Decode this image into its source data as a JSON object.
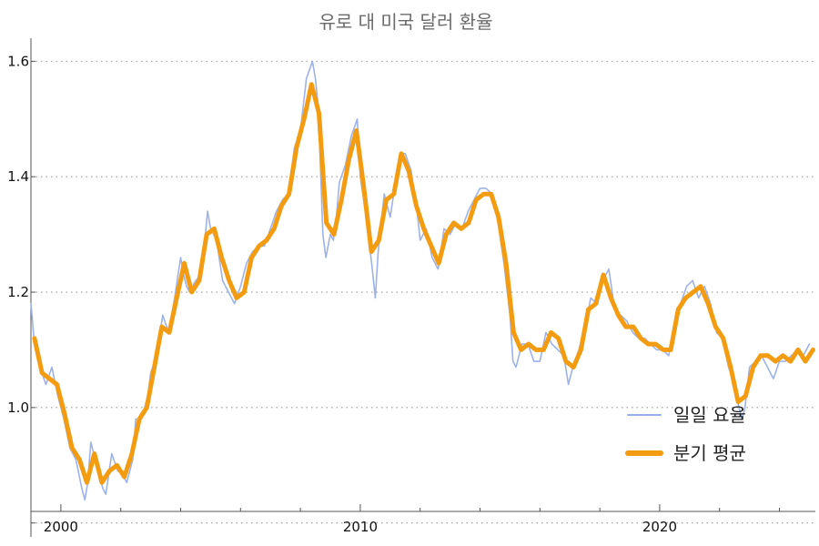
{
  "chart_data": {
    "type": "line",
    "title": "유로 대 미국 달러 환율",
    "xlabel": "",
    "ylabel": "",
    "xlim": [
      1999.0,
      2025.2
    ],
    "ylim": [
      0.82,
      1.64
    ],
    "x_ticks": [
      2000,
      2010,
      2020
    ],
    "x_minor_ticks": [
      2002,
      2004,
      2006,
      2008,
      2012,
      2014,
      2016,
      2018,
      2022,
      2024
    ],
    "y_ticks": [
      0.8,
      1.0,
      1.2,
      1.4,
      1.6
    ],
    "y_tick_labels": [
      "",
      "1.0",
      "1.2",
      "1.4",
      "1.6"
    ],
    "grid": "horizontal-dotted",
    "legend_position": "bottom-right",
    "series": [
      {
        "name": "일일 요율",
        "color": "#98aee8",
        "style": "thin",
        "x": [
          1999.0,
          1999.1,
          1999.3,
          1999.5,
          1999.7,
          1999.9,
          2000.1,
          2000.3,
          2000.5,
          2000.7,
          2000.8,
          2000.9,
          2001.0,
          2001.2,
          2001.4,
          2001.5,
          2001.7,
          2001.9,
          2002.0,
          2002.2,
          2002.4,
          2002.5,
          2002.7,
          2002.9,
          2003.0,
          2003.2,
          2003.4,
          2003.6,
          2003.8,
          2004.0,
          2004.1,
          2004.2,
          2004.3,
          2004.5,
          2004.7,
          2004.9,
          2005.0,
          2005.2,
          2005.4,
          2005.6,
          2005.8,
          2006.0,
          2006.2,
          2006.4,
          2006.6,
          2006.8,
          2007.0,
          2007.2,
          2007.4,
          2007.6,
          2007.8,
          2008.0,
          2008.2,
          2008.4,
          2008.5,
          2008.6,
          2008.75,
          2008.85,
          2009.0,
          2009.1,
          2009.2,
          2009.3,
          2009.5,
          2009.7,
          2009.9,
          2010.0,
          2010.2,
          2010.4,
          2010.5,
          2010.6,
          2010.8,
          2011.0,
          2011.2,
          2011.35,
          2011.5,
          2011.7,
          2011.9,
          2012.0,
          2012.2,
          2012.4,
          2012.6,
          2012.8,
          2013.0,
          2013.2,
          2013.4,
          2013.6,
          2013.8,
          2014.0,
          2014.2,
          2014.4,
          2014.6,
          2014.8,
          2015.0,
          2015.1,
          2015.2,
          2015.4,
          2015.6,
          2015.8,
          2016.0,
          2016.2,
          2016.4,
          2016.6,
          2016.8,
          2016.95,
          2017.1,
          2017.3,
          2017.5,
          2017.7,
          2017.9,
          2018.1,
          2018.3,
          2018.5,
          2018.7,
          2018.9,
          2019.1,
          2019.3,
          2019.5,
          2019.7,
          2019.9,
          2020.1,
          2020.3,
          2020.5,
          2020.7,
          2020.9,
          2021.1,
          2021.3,
          2021.5,
          2021.7,
          2021.9,
          2022.1,
          2022.3,
          2022.5,
          2022.6,
          2022.75,
          2022.85,
          2023.0,
          2023.2,
          2023.4,
          2023.6,
          2023.8,
          2024.0,
          2024.2,
          2024.4,
          2024.6,
          2024.8,
          2025.0
        ],
        "values": [
          1.18,
          1.12,
          1.07,
          1.04,
          1.07,
          1.02,
          0.98,
          0.93,
          0.91,
          0.86,
          0.84,
          0.87,
          0.94,
          0.9,
          0.86,
          0.85,
          0.92,
          0.89,
          0.89,
          0.87,
          0.91,
          0.98,
          0.98,
          1.02,
          1.06,
          1.09,
          1.16,
          1.13,
          1.19,
          1.26,
          1.23,
          1.21,
          1.2,
          1.22,
          1.23,
          1.34,
          1.31,
          1.29,
          1.22,
          1.2,
          1.18,
          1.21,
          1.25,
          1.27,
          1.28,
          1.28,
          1.31,
          1.34,
          1.36,
          1.37,
          1.45,
          1.48,
          1.57,
          1.6,
          1.57,
          1.52,
          1.3,
          1.26,
          1.3,
          1.29,
          1.33,
          1.39,
          1.42,
          1.47,
          1.5,
          1.4,
          1.33,
          1.24,
          1.19,
          1.27,
          1.37,
          1.33,
          1.4,
          1.44,
          1.44,
          1.41,
          1.34,
          1.29,
          1.31,
          1.26,
          1.24,
          1.31,
          1.3,
          1.32,
          1.31,
          1.34,
          1.36,
          1.38,
          1.38,
          1.37,
          1.32,
          1.25,
          1.16,
          1.08,
          1.07,
          1.11,
          1.11,
          1.08,
          1.08,
          1.13,
          1.11,
          1.1,
          1.09,
          1.04,
          1.07,
          1.1,
          1.14,
          1.19,
          1.18,
          1.22,
          1.24,
          1.17,
          1.16,
          1.15,
          1.13,
          1.12,
          1.12,
          1.11,
          1.1,
          1.1,
          1.09,
          1.14,
          1.18,
          1.21,
          1.22,
          1.19,
          1.21,
          1.18,
          1.13,
          1.12,
          1.07,
          1.04,
          1.01,
          0.98,
          1.0,
          1.07,
          1.08,
          1.09,
          1.07,
          1.05,
          1.08,
          1.08,
          1.09,
          1.1,
          1.09,
          1.11
        ]
      },
      {
        "name": "분기 평균",
        "color": "#f39c12",
        "style": "thick",
        "x": [
          1999.12,
          1999.37,
          1999.62,
          1999.87,
          2000.12,
          2000.37,
          2000.62,
          2000.87,
          2001.12,
          2001.37,
          2001.62,
          2001.87,
          2002.12,
          2002.37,
          2002.62,
          2002.87,
          2003.12,
          2003.37,
          2003.62,
          2003.87,
          2004.12,
          2004.37,
          2004.62,
          2004.87,
          2005.12,
          2005.37,
          2005.62,
          2005.87,
          2006.12,
          2006.37,
          2006.62,
          2006.87,
          2007.12,
          2007.37,
          2007.62,
          2007.87,
          2008.12,
          2008.37,
          2008.62,
          2008.87,
          2009.12,
          2009.37,
          2009.62,
          2009.87,
          2010.12,
          2010.37,
          2010.62,
          2010.87,
          2011.12,
          2011.37,
          2011.62,
          2011.87,
          2012.12,
          2012.37,
          2012.62,
          2012.87,
          2013.12,
          2013.37,
          2013.62,
          2013.87,
          2014.12,
          2014.37,
          2014.62,
          2014.87,
          2015.12,
          2015.37,
          2015.62,
          2015.87,
          2016.12,
          2016.37,
          2016.62,
          2016.87,
          2017.12,
          2017.37,
          2017.62,
          2017.87,
          2018.12,
          2018.37,
          2018.62,
          2018.87,
          2019.12,
          2019.37,
          2019.62,
          2019.87,
          2020.12,
          2020.37,
          2020.62,
          2020.87,
          2021.12,
          2021.37,
          2021.62,
          2021.87,
          2022.12,
          2022.37,
          2022.62,
          2022.87,
          2023.12,
          2023.37,
          2023.62,
          2023.87,
          2024.12,
          2024.37,
          2024.62,
          2024.87,
          2025.12
        ],
        "values": [
          1.12,
          1.06,
          1.05,
          1.04,
          0.99,
          0.93,
          0.91,
          0.87,
          0.92,
          0.87,
          0.89,
          0.9,
          0.88,
          0.92,
          0.98,
          1.0,
          1.07,
          1.14,
          1.13,
          1.19,
          1.25,
          1.2,
          1.22,
          1.3,
          1.31,
          1.26,
          1.22,
          1.19,
          1.2,
          1.26,
          1.28,
          1.29,
          1.31,
          1.35,
          1.37,
          1.45,
          1.5,
          1.56,
          1.51,
          1.32,
          1.3,
          1.36,
          1.43,
          1.48,
          1.38,
          1.27,
          1.29,
          1.36,
          1.37,
          1.44,
          1.41,
          1.35,
          1.31,
          1.28,
          1.25,
          1.3,
          1.32,
          1.31,
          1.32,
          1.36,
          1.37,
          1.37,
          1.33,
          1.25,
          1.13,
          1.1,
          1.11,
          1.1,
          1.1,
          1.13,
          1.12,
          1.08,
          1.07,
          1.1,
          1.17,
          1.18,
          1.23,
          1.19,
          1.16,
          1.14,
          1.14,
          1.12,
          1.11,
          1.11,
          1.1,
          1.1,
          1.17,
          1.19,
          1.2,
          1.21,
          1.18,
          1.14,
          1.12,
          1.07,
          1.01,
          1.02,
          1.07,
          1.09,
          1.09,
          1.08,
          1.09,
          1.08,
          1.1,
          1.08,
          1.1
        ]
      }
    ],
    "legend": [
      {
        "label": "일일 요율",
        "color": "#98aee8"
      },
      {
        "label": "분기 평균",
        "color": "#f39c12"
      }
    ]
  }
}
